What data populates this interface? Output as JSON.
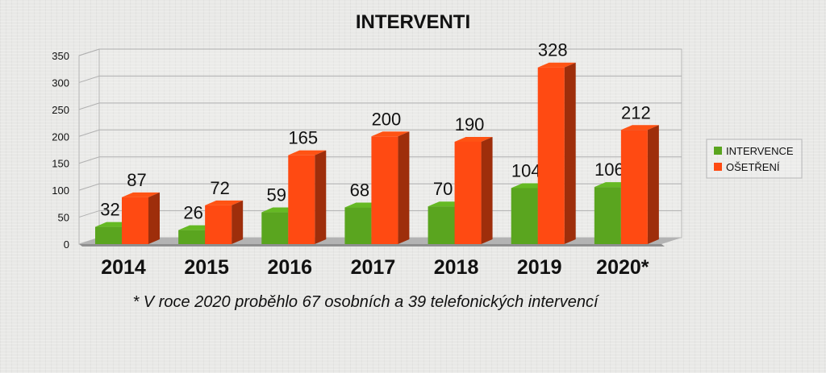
{
  "chart_data": {
    "type": "bar",
    "title": "INTERVENTI",
    "categories": [
      "2014",
      "2015",
      "2016",
      "2017",
      "2018",
      "2019",
      "2020*"
    ],
    "series": [
      {
        "name": "INTERVENCE",
        "values": [
          32,
          26,
          59,
          68,
          70,
          104,
          106
        ]
      },
      {
        "name": "OŠETŘENÍ",
        "values": [
          87,
          72,
          165,
          200,
          190,
          328,
          212
        ]
      }
    ],
    "ylim": [
      0,
      350
    ],
    "yticks": [
      "0",
      "50",
      "100",
      "150",
      "200",
      "250",
      "300",
      "350"
    ],
    "grid": true,
    "legend_position": "right",
    "colors": {
      "INTERVENCE": "#5aa51f",
      "OŠETŘENÍ": "#ff4a12"
    }
  },
  "footnote": "* V roce 2020 proběhlo 67 osobních a 39 telefonických intervencí"
}
